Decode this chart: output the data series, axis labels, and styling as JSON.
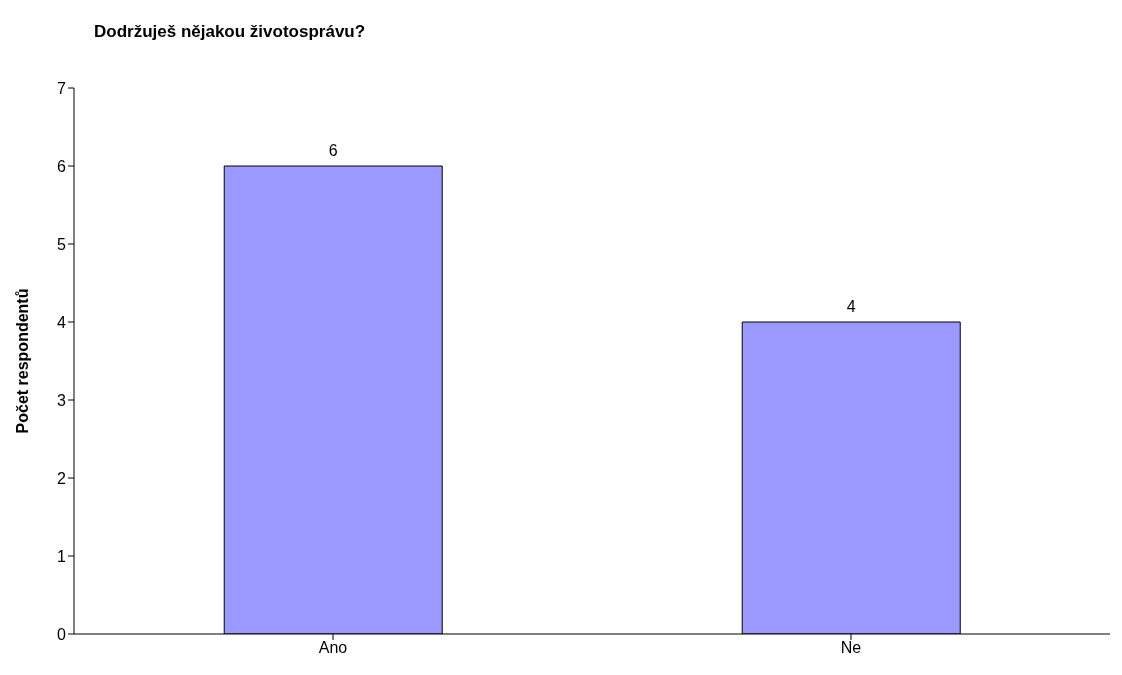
{
  "chart_data": {
    "type": "bar",
    "title": "Dodržuješ nějakou životosprávu?",
    "ylabel": "Počet respondentů",
    "categories": [
      "Ano",
      "Ne"
    ],
    "values": [
      6,
      4
    ],
    "color": "#9999ff",
    "ylim": [
      0,
      7
    ],
    "yticks": [
      0,
      1,
      2,
      3,
      4,
      5,
      6,
      7
    ],
    "grid": false,
    "legend": false,
    "data_labels": true
  }
}
